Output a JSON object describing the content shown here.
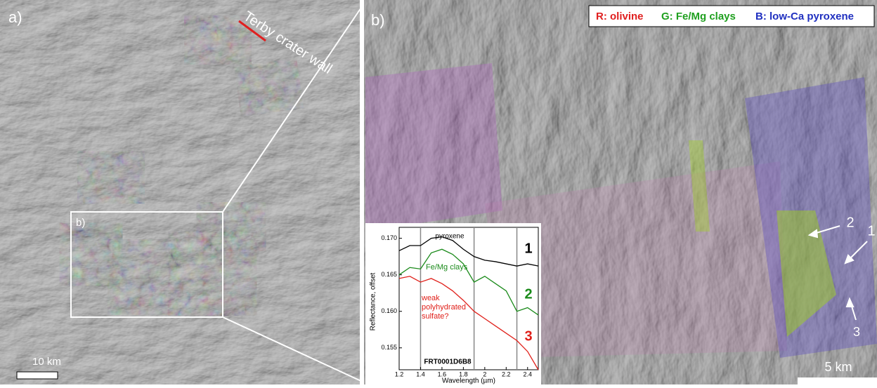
{
  "panels": [
    {
      "label": "a)",
      "annotation": "Terby crater wall",
      "box_label": "b)",
      "scale": "10 km"
    },
    {
      "label": "b)",
      "legend": [
        "R: olivine",
        "G: Fe/Mg clays",
        "B: low-Ca pyroxene"
      ],
      "markers": [
        "2",
        "1",
        "3"
      ],
      "scale": "5 km"
    }
  ],
  "chart_data": {
    "type": "line",
    "y_label": "Reflectance, offset",
    "x_label": "Wavelength (µm)",
    "observation": "FRT0001D6B8",
    "x": [
      1.2,
      1.3,
      1.4,
      1.5,
      1.6,
      1.7,
      1.8,
      1.9,
      2.0,
      2.1,
      2.2,
      2.3,
      2.4,
      2.5
    ],
    "series": [
      {
        "name": "pyroxene",
        "tag": "1",
        "color": "#000000",
        "values": [
          0.1683,
          0.169,
          0.169,
          0.17,
          0.1702,
          0.1697,
          0.1685,
          0.1675,
          0.167,
          0.1668,
          0.1665,
          0.1662,
          0.1665,
          0.1662
        ]
      },
      {
        "name": "Fe/Mg clays",
        "tag": "2",
        "color": "#1a8a1a",
        "values": [
          0.165,
          0.166,
          0.1658,
          0.168,
          0.1685,
          0.1678,
          0.1665,
          0.164,
          0.1648,
          0.1638,
          0.1628,
          0.16,
          0.1605,
          0.1595
        ]
      },
      {
        "name": "weak polyhydrated sulfate?",
        "tag": "3",
        "color": "#e0201a",
        "values": [
          0.1645,
          0.1648,
          0.164,
          0.1645,
          0.1638,
          0.1628,
          0.1615,
          0.16,
          0.159,
          0.158,
          0.157,
          0.156,
          0.1545,
          0.152
        ]
      }
    ],
    "band_lines": [
      1.4,
      1.9,
      2.3
    ],
    "xlim": [
      1.2,
      2.5
    ],
    "ylim": [
      0.152,
      0.1715
    ],
    "xticks": [
      1.2,
      1.4,
      1.6,
      1.8,
      2.0,
      2.2,
      2.4
    ],
    "yticks": [
      0.155,
      {
        "value": 0.16,
        "label": "0.160"
      },
      0.165,
      {
        "value": 0.17,
        "label": "0.170"
      }
    ]
  }
}
